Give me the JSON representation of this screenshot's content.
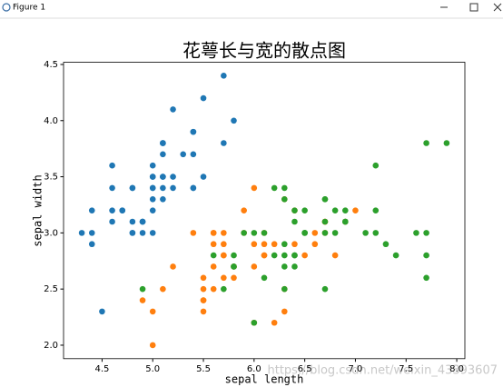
{
  "window": {
    "title": "Figure 1"
  },
  "watermark": "https://blog.csdn.net/weixin_43393607",
  "chart_data": {
    "type": "scatter",
    "title": "花萼长与宽的散点图",
    "x_label": "sepal length",
    "y_label": "sepal width",
    "xlim": [
      4.12,
      8.08
    ],
    "ylim": [
      1.88,
      4.52
    ],
    "xticks": [
      4.5,
      {
        "value": 5,
        "label": "5.0"
      },
      5.5,
      {
        "value": 6,
        "label": "6.0"
      },
      6.5,
      {
        "value": 7,
        "label": "7.0"
      },
      7.5,
      {
        "value": 8,
        "label": "8.0"
      }
    ],
    "yticks": [
      {
        "value": 2,
        "label": "2.0"
      },
      2.5,
      {
        "value": 3,
        "label": "3.0"
      },
      3.5,
      {
        "value": 4,
        "label": "4.0"
      },
      4.5
    ],
    "series": [
      {
        "color": "#1f77b4",
        "x": [
          5.1,
          4.9,
          4.7,
          4.6,
          5.0,
          5.4,
          4.6,
          5.0,
          4.4,
          4.9,
          5.4,
          4.8,
          4.8,
          4.3,
          5.8,
          5.7,
          5.4,
          5.1,
          5.7,
          5.1,
          5.4,
          5.1,
          4.6,
          5.1,
          4.8,
          5.0,
          5.0,
          5.2,
          5.2,
          4.7,
          4.8,
          5.4,
          5.2,
          5.5,
          4.9,
          5.0,
          5.5,
          4.9,
          4.4,
          5.1,
          5.0,
          4.5,
          4.4,
          5.0,
          5.1,
          4.8,
          5.1,
          4.6,
          5.3,
          5.0
        ],
        "values": [
          3.5,
          3.0,
          3.2,
          3.1,
          3.6,
          3.9,
          3.4,
          3.4,
          2.9,
          3.1,
          3.7,
          3.4,
          3.0,
          3.0,
          4.0,
          4.4,
          3.9,
          3.5,
          3.8,
          3.8,
          3.4,
          3.7,
          3.6,
          3.3,
          3.4,
          3.0,
          3.4,
          3.5,
          3.4,
          3.2,
          3.1,
          3.4,
          4.1,
          4.2,
          3.1,
          3.2,
          3.5,
          3.1,
          3.0,
          3.4,
          3.5,
          2.3,
          3.2,
          3.5,
          3.8,
          3.0,
          3.8,
          3.2,
          3.7,
          3.3
        ]
      },
      {
        "color": "#ff7f0e",
        "x": [
          7.0,
          6.4,
          6.9,
          5.5,
          6.5,
          5.7,
          6.3,
          4.9,
          6.6,
          5.2,
          5.0,
          5.9,
          6.0,
          6.1,
          5.6,
          6.7,
          5.6,
          5.8,
          6.2,
          5.6,
          5.9,
          6.1,
          6.3,
          6.1,
          6.4,
          6.6,
          6.8,
          6.7,
          6.0,
          5.7,
          5.5,
          5.5,
          5.8,
          6.0,
          5.4,
          6.0,
          6.7,
          6.3,
          5.6,
          5.5,
          5.5,
          6.1,
          5.8,
          5.0,
          5.6,
          5.7,
          5.7,
          6.2,
          5.1,
          5.7
        ],
        "values": [
          3.2,
          3.2,
          3.1,
          2.3,
          2.8,
          2.8,
          3.3,
          2.4,
          2.9,
          2.7,
          2.0,
          3.0,
          2.2,
          2.9,
          2.9,
          3.1,
          3.0,
          2.7,
          2.2,
          2.5,
          3.2,
          2.8,
          2.5,
          2.8,
          2.9,
          3.0,
          2.8,
          3.0,
          2.9,
          2.6,
          2.4,
          2.4,
          2.7,
          2.7,
          3.0,
          3.4,
          3.1,
          2.3,
          3.0,
          2.5,
          2.6,
          3.0,
          2.6,
          2.3,
          2.7,
          3.0,
          2.9,
          2.9,
          2.5,
          2.8
        ]
      },
      {
        "color": "#2ca02c",
        "x": [
          6.3,
          5.8,
          7.1,
          6.3,
          6.5,
          7.6,
          4.9,
          7.3,
          6.7,
          7.2,
          6.5,
          6.4,
          6.8,
          5.7,
          5.8,
          6.4,
          6.5,
          7.7,
          7.7,
          6.0,
          6.9,
          5.6,
          7.7,
          6.3,
          6.7,
          7.2,
          6.2,
          6.1,
          6.4,
          7.2,
          7.4,
          7.9,
          6.4,
          6.3,
          6.1,
          7.7,
          6.3,
          6.4,
          6.0,
          6.9,
          6.7,
          6.9,
          5.8,
          6.8,
          6.7,
          6.7,
          6.3,
          6.5,
          6.2,
          5.9
        ],
        "values": [
          3.3,
          2.7,
          3.0,
          2.9,
          3.0,
          3.0,
          2.5,
          2.9,
          2.5,
          3.6,
          3.2,
          2.7,
          3.0,
          2.5,
          2.8,
          3.2,
          3.0,
          3.8,
          2.6,
          2.2,
          3.2,
          2.8,
          2.8,
          2.7,
          3.3,
          3.2,
          2.8,
          3.0,
          2.8,
          3.0,
          2.8,
          3.8,
          2.8,
          2.8,
          2.6,
          3.0,
          3.4,
          3.1,
          3.0,
          3.1,
          3.1,
          3.1,
          2.7,
          3.2,
          3.3,
          3.0,
          2.5,
          3.0,
          3.4,
          3.0
        ]
      }
    ]
  }
}
